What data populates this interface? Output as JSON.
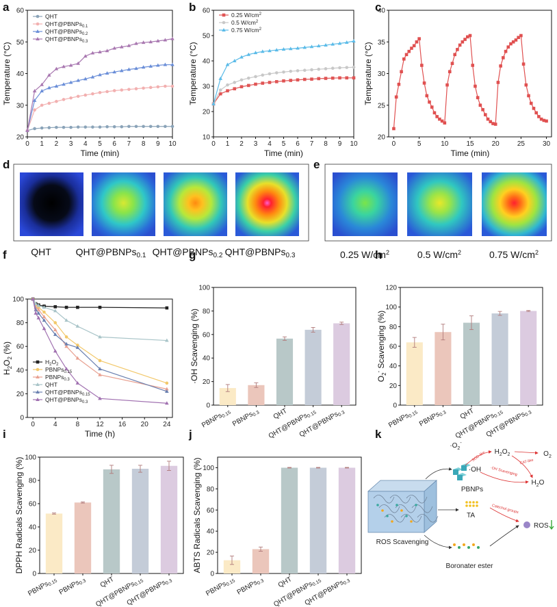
{
  "panel_labels": [
    "a",
    "b",
    "c",
    "d",
    "e",
    "f",
    "g",
    "h",
    "i",
    "j",
    "k"
  ],
  "chart_data": [
    {
      "id": "a",
      "type": "line",
      "xlabel": "Time (min)",
      "ylabel": "Temperature (°C)",
      "xlim": [
        0,
        10
      ],
      "ylim": [
        20,
        60
      ],
      "xticks": [
        "0",
        "1",
        "2",
        "3",
        "4",
        "5",
        "6",
        "7",
        "8",
        "9",
        "10"
      ],
      "yticks": [
        "20",
        "30",
        "40",
        "50",
        "60"
      ],
      "x": [
        0,
        0.5,
        1,
        1.5,
        2,
        2.5,
        3,
        3.5,
        4,
        4.5,
        5,
        5.5,
        6,
        6.5,
        7,
        7.5,
        8,
        8.5,
        9,
        9.5,
        10
      ],
      "series": [
        {
          "name": "QHT",
          "color": "#8aa3b8",
          "marker": "circle",
          "values": [
            22,
            22.6,
            22.8,
            22.9,
            23,
            23,
            23,
            23.1,
            23.1,
            23.1,
            23.1,
            23.2,
            23.2,
            23.2,
            23.3,
            23.3,
            23.3,
            23.3,
            23.3,
            23.3,
            23.3
          ]
        },
        {
          "name": "QHT@PBNPs",
          "sub": "0.1",
          "color": "#f2b0b0",
          "marker": "circle",
          "values": [
            22,
            28.5,
            30,
            30.6,
            31.2,
            31.8,
            32.3,
            32.8,
            33.2,
            33.6,
            34,
            34.3,
            34.6,
            34.8,
            35,
            35.2,
            35.4,
            35.6,
            35.8,
            36,
            36
          ]
        },
        {
          "name": "QHT@PBNPs",
          "sub": "0.2",
          "color": "#6a8ed8",
          "marker": "triangle",
          "values": [
            22,
            31.5,
            34.5,
            35.5,
            36,
            36.6,
            37.2,
            37.8,
            38.3,
            38.9,
            39.6,
            40.1,
            40.5,
            40.9,
            41.3,
            41.6,
            42,
            42.3,
            42.6,
            42.8,
            42.8
          ]
        },
        {
          "name": "QHT@PBNPs",
          "sub": "0.3",
          "color": "#a877b0",
          "marker": "triangle",
          "values": [
            22,
            34.5,
            36.5,
            39.5,
            41.5,
            42.2,
            42.6,
            43.2,
            45.5,
            46.5,
            46.8,
            47.2,
            48,
            48.4,
            48.8,
            49.5,
            49.8,
            50,
            50.3,
            50.6,
            51
          ]
        }
      ]
    },
    {
      "id": "b",
      "type": "line",
      "xlabel": "Time (min)",
      "ylabel": "Temperature (°C)",
      "xlim": [
        0,
        10
      ],
      "ylim": [
        10,
        60
      ],
      "xticks": [
        "0",
        "1",
        "2",
        "3",
        "4",
        "5",
        "6",
        "7",
        "8",
        "9",
        "10"
      ],
      "yticks": [
        "10",
        "20",
        "30",
        "40",
        "50",
        "60"
      ],
      "x": [
        0,
        0.5,
        1,
        1.5,
        2,
        2.5,
        3,
        3.5,
        4,
        4.5,
        5,
        5.5,
        6,
        6.5,
        7,
        7.5,
        8,
        8.5,
        9,
        9.5,
        10
      ],
      "series": [
        {
          "name": "0.25 W/cm",
          "sup": "2",
          "color": "#e05555",
          "marker": "square",
          "values": [
            23,
            27,
            28.2,
            29,
            29.8,
            30.3,
            30.8,
            31.2,
            31.5,
            31.8,
            32.1,
            32.3,
            32.5,
            32.7,
            32.8,
            33,
            33.1,
            33.2,
            33.3,
            33.3,
            33.3
          ]
        },
        {
          "name": "0.5 W/cm",
          "sup": "2",
          "color": "#c8c8c8",
          "marker": "circle",
          "values": [
            23,
            28.5,
            30.5,
            31.5,
            32.5,
            33.2,
            33.8,
            34.4,
            34.9,
            35.3,
            35.6,
            35.9,
            36.1,
            36.3,
            36.5,
            36.7,
            36.9,
            37.1,
            37.3,
            37.4,
            37.5
          ]
        },
        {
          "name": "0.75 W/cm",
          "sup": "2",
          "color": "#5bbbe8",
          "marker": "triangle",
          "values": [
            23,
            33,
            38.5,
            40,
            41.5,
            42.5,
            43.2,
            43.7,
            44,
            44.3,
            44.6,
            44.8,
            45,
            45.3,
            45.6,
            45.9,
            46.2,
            46.6,
            46.9,
            47.3,
            47.8
          ]
        }
      ]
    },
    {
      "id": "c",
      "type": "line",
      "xlabel": "Time (min)",
      "ylabel": "Temperature (°C)",
      "xlim": [
        -1,
        31
      ],
      "ylim": [
        20,
        40
      ],
      "xticks": [
        "0",
        "5",
        "10",
        "15",
        "20",
        "25",
        "30"
      ],
      "yticks": [
        "20",
        "25",
        "30",
        "35",
        "40"
      ],
      "x": [
        0,
        0.5,
        1,
        1.5,
        2,
        2.5,
        3,
        3.5,
        4,
        4.5,
        5,
        5.5,
        6,
        6.5,
        7,
        7.5,
        8,
        8.5,
        9,
        9.5,
        10,
        10.5,
        11,
        11.5,
        12,
        12.5,
        13,
        13.5,
        14,
        14.5,
        15,
        15.5,
        16,
        16.5,
        17,
        17.5,
        18,
        18.5,
        19,
        19.5,
        20,
        20.5,
        21,
        21.5,
        22,
        22.5,
        23,
        23.5,
        24,
        24.5,
        25,
        25.5,
        26,
        26.5,
        27,
        27.5,
        28,
        28.5,
        29,
        29.5,
        30
      ],
      "series": [
        {
          "name": "",
          "color": "#e05050",
          "marker": "square",
          "values": [
            21.3,
            26.3,
            28.3,
            30.3,
            32.3,
            33,
            33.5,
            34,
            34.4,
            35,
            35.5,
            31.3,
            28.5,
            26.5,
            25.5,
            24.7,
            23.8,
            23.2,
            22.8,
            22.5,
            22.2,
            28.2,
            30.3,
            31.6,
            33,
            33.8,
            34.5,
            35,
            35.4,
            35.8,
            36,
            31.3,
            28,
            26.2,
            25,
            24.3,
            23.5,
            22.8,
            22.4,
            22.1,
            22,
            28.6,
            31.2,
            32.5,
            33.5,
            34.2,
            34.7,
            35,
            35.3,
            35.7,
            36,
            31.5,
            28.2,
            26.5,
            25.3,
            24.5,
            23.8,
            23.2,
            22.8,
            22.6,
            22.5
          ]
        }
      ]
    },
    {
      "id": "f",
      "type": "line",
      "xlabel": "Time (h)",
      "ylabel": "H2O2 (%)",
      "xlim": [
        -1,
        25
      ],
      "ylim": [
        0,
        100
      ],
      "xticks": [
        "0",
        "4",
        "8",
        "12",
        "16",
        "20",
        "24"
      ],
      "yticks": [
        "0",
        "20",
        "40",
        "60",
        "80",
        "100"
      ],
      "x": [
        0,
        0.5,
        1,
        2,
        4,
        6,
        8,
        12,
        24
      ],
      "series": [
        {
          "name": "H",
          "sub_parts": [
            "2",
            "O",
            "2"
          ],
          "label": "H2O2",
          "color": "#222222",
          "marker": "square",
          "values": [
            100,
            96,
            95,
            94,
            93.5,
            93,
            93,
            93,
            92.5
          ]
        },
        {
          "name": "PBNPs",
          "sub": "0.15",
          "color": "#f2c86a",
          "marker": "circle",
          "values": [
            100,
            95,
            93,
            89,
            80,
            68,
            61,
            48,
            29
          ]
        },
        {
          "name": "PBNPs",
          "sub": "0.3",
          "color": "#e8a090",
          "marker": "triangle",
          "values": [
            100,
            93,
            91,
            85,
            74,
            60,
            50,
            36,
            24
          ]
        },
        {
          "name": "QHT",
          "color": "#a8c4c8",
          "marker": "triangle",
          "values": [
            100,
            96,
            94.5,
            93,
            90,
            82,
            77,
            68,
            65
          ]
        },
        {
          "name": "QHT@PBNPs",
          "sub": "0.15",
          "color": "#6a80b0",
          "marker": "triangle",
          "values": [
            100,
            91,
            88,
            82,
            70,
            62,
            59,
            41,
            22
          ]
        },
        {
          "name": "QHT@PBNPs",
          "sub": "0.3",
          "color": "#a070b0",
          "marker": "triangle",
          "values": [
            100,
            88,
            84,
            75,
            56,
            41,
            29,
            16,
            12
          ]
        }
      ]
    },
    {
      "id": "g",
      "type": "bar",
      "ylabel": "·OH Scavenging (%)",
      "ylim": [
        0,
        100
      ],
      "yticks": [
        "0",
        "20",
        "40",
        "60",
        "80",
        "100"
      ],
      "categories": [
        {
          "t": "PBNPs",
          "s": "0.15"
        },
        {
          "t": "PBNPs",
          "s": "0.3"
        },
        {
          "t": "QHT",
          "s": ""
        },
        {
          "t": "QHT@PBNPs",
          "s": "0.15"
        },
        {
          "t": "QHT@PBNPs",
          "s": "0.3"
        }
      ],
      "values": [
        14.5,
        17,
        56.5,
        64,
        69.5
      ],
      "errors": [
        3,
        2,
        1.5,
        2,
        1
      ]
    },
    {
      "id": "h",
      "type": "bar",
      "ylabel": "O2- Scavenging (%)",
      "ylim": [
        0,
        120
      ],
      "yticks": [
        "0",
        "20",
        "40",
        "60",
        "80",
        "100",
        "120"
      ],
      "categories": [
        {
          "t": "PBNPs",
          "s": "0.15"
        },
        {
          "t": "PBNPs",
          "s": "0.3"
        },
        {
          "t": "QHT",
          "s": ""
        },
        {
          "t": "QHT@PBNPs",
          "s": "0.15"
        },
        {
          "t": "QHT@PBNPs",
          "s": "0.3"
        }
      ],
      "values": [
        64,
        74.5,
        84,
        93.5,
        96
      ],
      "errors": [
        5,
        8,
        7,
        2,
        0.5
      ]
    },
    {
      "id": "i",
      "type": "bar",
      "ylabel": "DPPH Radicals Scavenging (%)",
      "ylim": [
        0,
        100
      ],
      "yticks": [
        "0",
        "20",
        "40",
        "60",
        "80",
        "100"
      ],
      "categories": [
        {
          "t": "PBNPs",
          "s": "0.15"
        },
        {
          "t": "PBNPs",
          "s": "0.3"
        },
        {
          "t": "QHT",
          "s": ""
        },
        {
          "t": "QHT@PBNPs",
          "s": "0.15"
        },
        {
          "t": "QHT@PBNPs",
          "s": "0.3"
        }
      ],
      "values": [
        51.5,
        61,
        89.5,
        90,
        92.5
      ],
      "errors": [
        0.5,
        0.5,
        3.5,
        3,
        4
      ]
    },
    {
      "id": "j",
      "type": "bar",
      "ylabel": "ABTS Radicals Scavenging (%)",
      "ylim": [
        0,
        110
      ],
      "yticks": [
        "0",
        "20",
        "40",
        "60",
        "80",
        "100"
      ],
      "categories": [
        {
          "t": "PBNPs",
          "s": "0.15"
        },
        {
          "t": "PBNPs",
          "s": "0.3"
        },
        {
          "t": "QHT",
          "s": ""
        },
        {
          "t": "QHT@PBNPs",
          "s": "0.15"
        },
        {
          "t": "QHT@PBNPs",
          "s": "0.3"
        }
      ],
      "values": [
        12.5,
        23,
        100,
        100,
        100
      ],
      "errors": [
        4,
        2,
        0.3,
        0.3,
        0.3
      ]
    }
  ],
  "bar_colors": [
    "#fbeac6",
    "#ebc6bb",
    "#b8c8c8",
    "#c4ccd8",
    "#dccbe0"
  ],
  "thermal_d": {
    "labels": [
      {
        "t": "QHT",
        "s": ""
      },
      {
        "t": "QHT@PBNPs",
        "s": "0.1"
      },
      {
        "t": "QHT@PBNPs",
        "s": "0.2"
      },
      {
        "t": "QHT@PBNPs",
        "s": "0.3"
      }
    ]
  },
  "thermal_e": {
    "labels": [
      {
        "t": "0.25 W/cm",
        "p": "2"
      },
      {
        "t": "0.5 W/cm",
        "p": "2"
      },
      {
        "t": "0.75 W/cm",
        "p": "2"
      }
    ]
  },
  "scheme_k": {
    "superoxide": "·O",
    "superoxide_sup": "2",
    "superoxide_sub": "-",
    "h2o2": "H",
    "h2o2_sub": "2",
    "h2o2_mid": "O",
    "o2": "O",
    "o2_sub": "2",
    "h2o": "H",
    "h2o_sub": "2",
    "h2o_end": "O",
    "oh": "·OH",
    "pbnps": "PBNPs",
    "ta": "TA",
    "boronate": "Boronater ester",
    "ros_scavenging": "ROS Scavenging",
    "ros": "ROS",
    "sod_like": "SOD-like",
    "cat_like": "CAT-like",
    "oh_scav": "·OH Scavenging",
    "catechol": "Catechol groups"
  }
}
